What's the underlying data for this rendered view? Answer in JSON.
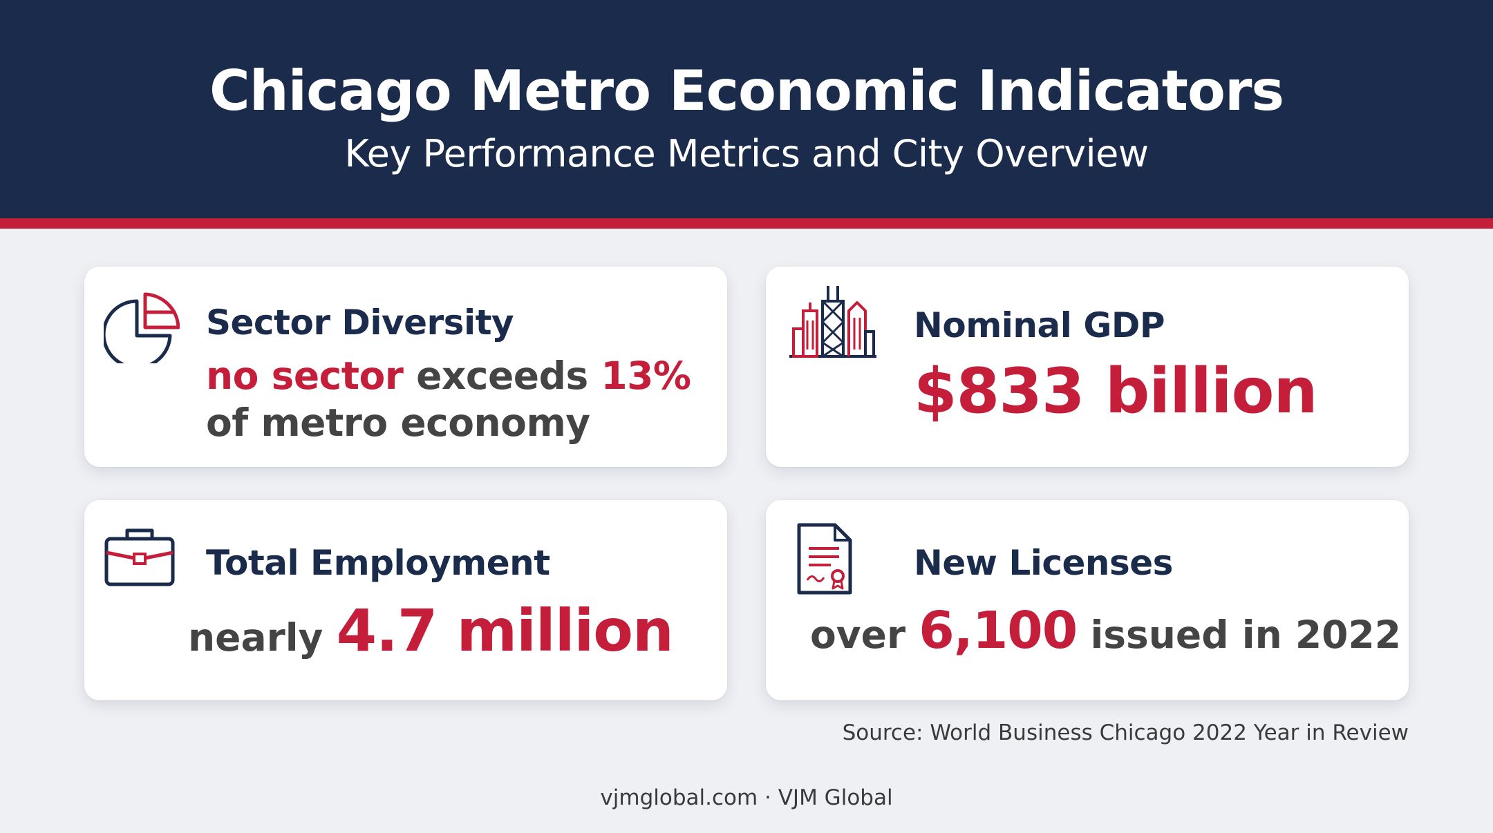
{
  "header": {
    "title": "Chicago Metro Economic Indicators",
    "subtitle": "Key Performance Metrics and City Overview"
  },
  "cards": {
    "sector": {
      "icon": "pie-chart-icon",
      "title": "Sector Diversity",
      "highlight1": "no sector",
      "text1": " exceeds ",
      "highlight2": "13%",
      "line2": "of metro economy"
    },
    "gdp": {
      "icon": "city-skyline-icon",
      "title": "Nominal GDP",
      "value": "$833 billion"
    },
    "employment": {
      "icon": "briefcase-icon",
      "title": "Total Employment",
      "prefix": "nearly ",
      "value": "4.7 million"
    },
    "licenses": {
      "icon": "certificate-document-icon",
      "title": "New Licenses",
      "prefix": "over ",
      "value": "6,100",
      "suffix": " issued in 2022"
    }
  },
  "source": "Source: World Business Chicago 2022 Year in Review",
  "footer": "vjmglobal.com · VJM Global",
  "colors": {
    "navy": "#1b2b4b",
    "red": "#c41e3a",
    "background": "#eef0f4",
    "text_gray": "#444444"
  }
}
